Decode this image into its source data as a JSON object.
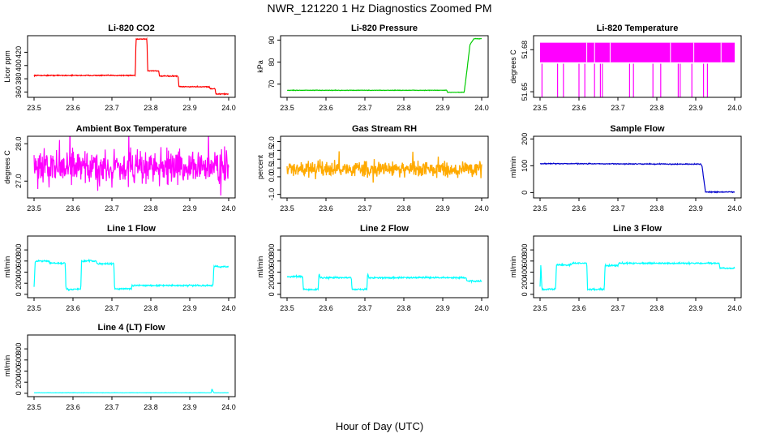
{
  "figure": {
    "title": "NWR_121220  1 Hz Diagnostics Zoomed PM",
    "xlabel": "Hour of Day (UTC)"
  },
  "chart_data": [
    {
      "type": "line",
      "title": "Li-820 CO2",
      "ylabel": "Licor ppm",
      "color": "#ff0000",
      "xlim": [
        23.5,
        24.0
      ],
      "ylim": [
        352,
        445
      ],
      "yticks": [
        {
          "v": 360,
          "label": "360"
        },
        {
          "v": 380,
          "label": "380"
        },
        {
          "v": 400,
          "label": "400"
        },
        {
          "v": 420,
          "label": "420"
        }
      ],
      "xticks": [
        "23.5",
        "23.6",
        "23.7",
        "23.8",
        "23.9",
        "24.0"
      ],
      "noise": 0.6,
      "series": [
        {
          "x": [
            23.5,
            23.76,
            23.762,
            23.79,
            23.792,
            23.82,
            23.822,
            23.87,
            23.872,
            23.95,
            23.952,
            23.965,
            23.967,
            24.0
          ],
          "y": [
            385,
            385,
            440,
            440,
            392,
            392,
            384,
            384,
            368,
            368,
            365,
            365,
            357,
            357
          ]
        }
      ]
    },
    {
      "type": "line",
      "title": "Li-820 Pressure",
      "ylabel": "kPa",
      "color": "#00cc00",
      "xlim": [
        23.5,
        24.0
      ],
      "ylim": [
        64,
        92
      ],
      "yticks": [
        {
          "v": 70,
          "label": "70"
        },
        {
          "v": 80,
          "label": "80"
        },
        {
          "v": 90,
          "label": "90"
        }
      ],
      "xticks": [
        "23.5",
        "23.6",
        "23.7",
        "23.8",
        "23.9",
        "24.0"
      ],
      "noise": 0.1,
      "series": [
        {
          "x": [
            23.5,
            23.91,
            23.912,
            23.955,
            23.962,
            23.97,
            23.98,
            24.0
          ],
          "y": [
            67.2,
            67.2,
            66.3,
            66.3,
            76,
            88,
            90.6,
            90.6
          ]
        }
      ]
    },
    {
      "type": "line",
      "title": "Li-820 Temperature",
      "ylabel": "degrees C",
      "color": "#ff00ff",
      "xlim": [
        23.5,
        24.0
      ],
      "ylim": [
        51.646,
        51.69
      ],
      "yticks": [
        {
          "v": 51.65,
          "label": "51.65"
        },
        {
          "v": 51.68,
          "label": "51.68"
        }
      ],
      "xticks": [
        "23.5",
        "23.6",
        "23.7",
        "23.8",
        "23.9",
        "24.0"
      ],
      "noise": 0,
      "series": [
        {
          "x": [
            23.5,
            24.0
          ],
          "y": [
            51.671,
            51.685
          ]
        }
      ]
    },
    {
      "type": "line",
      "title": "Ambient Box Temperature",
      "ylabel": "degrees C",
      "color": "#ff00ff",
      "xlim": [
        23.5,
        24.0
      ],
      "ylim": [
        26.55,
        28.2
      ],
      "yticks": [
        {
          "v": 27.0,
          "label": "27.0"
        },
        {
          "v": 28.0,
          "label": "28.0"
        }
      ],
      "xticks": [
        "23.5",
        "23.6",
        "23.7",
        "23.8",
        "23.9",
        "24.0"
      ],
      "noise": 0.4,
      "series": [
        {
          "x": [
            23.5,
            24.0
          ],
          "y": [
            27.35,
            27.4
          ]
        }
      ]
    },
    {
      "type": "line",
      "title": "Gas Stream RH",
      "ylabel": "percent",
      "color": "#ffaa00",
      "xlim": [
        23.5,
        24.0
      ],
      "ylim": [
        -1.2,
        2.3
      ],
      "yticks": [
        {
          "v": -1.0,
          "label": "-1.0"
        },
        {
          "v": 0.0,
          "label": "0.0"
        },
        {
          "v": 0.5,
          "label": "0.5"
        },
        {
          "v": 1.0,
          "label": "1.0"
        },
        {
          "v": 1.5,
          "label": "1.5"
        },
        {
          "v": 2.0,
          "label": "2.0"
        }
      ],
      "xticks": [
        "23.5",
        "23.6",
        "23.7",
        "23.8",
        "23.9",
        "24.0"
      ],
      "noise": 0.35,
      "series": [
        {
          "x": [
            23.5,
            24.0
          ],
          "y": [
            0.45,
            0.45
          ]
        }
      ]
    },
    {
      "type": "line",
      "title": "Sample Flow",
      "ylabel": "ml/min",
      "color": "#0000cc",
      "xlim": [
        23.5,
        24.0
      ],
      "ylim": [
        -20,
        210
      ],
      "yticks": [
        {
          "v": 0,
          "label": "0"
        },
        {
          "v": 100,
          "label": "100"
        },
        {
          "v": 200,
          "label": "200"
        }
      ],
      "xticks": [
        "23.5",
        "23.6",
        "23.7",
        "23.8",
        "23.9",
        "24.0"
      ],
      "noise": 1.5,
      "series": [
        {
          "x": [
            23.5,
            23.912,
            23.916,
            23.925,
            24.0
          ],
          "y": [
            108,
            106,
            100,
            2,
            2
          ]
        }
      ]
    },
    {
      "type": "line",
      "title": "Line 1 Flow",
      "ylabel": "ml/min",
      "color": "#00ffff",
      "xlim": [
        23.5,
        24.0
      ],
      "ylim": [
        -60,
        1050
      ],
      "yticks": [
        {
          "v": 0,
          "label": "0"
        },
        {
          "v": 200,
          "label": "200"
        },
        {
          "v": 400,
          "label": "400"
        },
        {
          "v": 600,
          "label": "600"
        },
        {
          "v": 800,
          "label": "800"
        }
      ],
      "xticks": [
        "23.5",
        "23.6",
        "23.7",
        "23.8",
        "23.9",
        "24.0"
      ],
      "noise": 12,
      "series": [
        {
          "x": [
            23.5,
            23.503,
            23.54,
            23.54,
            23.58,
            23.582,
            23.62,
            23.622,
            23.66,
            23.662,
            23.705,
            23.707,
            23.75,
            23.752,
            23.96,
            23.962,
            24.0
          ],
          "y": [
            130,
            600,
            600,
            560,
            560,
            90,
            90,
            600,
            600,
            550,
            550,
            100,
            100,
            160,
            160,
            500,
            500
          ]
        }
      ]
    },
    {
      "type": "line",
      "title": "Line 2 Flow",
      "ylabel": "ml/min",
      "color": "#00ffff",
      "xlim": [
        23.5,
        24.0
      ],
      "ylim": [
        -60,
        1050
      ],
      "yticks": [
        {
          "v": 0,
          "label": "0"
        },
        {
          "v": 200,
          "label": "200"
        },
        {
          "v": 400,
          "label": "400"
        },
        {
          "v": 600,
          "label": "600"
        },
        {
          "v": 800,
          "label": "800"
        }
      ],
      "xticks": [
        "23.5",
        "23.6",
        "23.7",
        "23.8",
        "23.9",
        "24.0"
      ],
      "noise": 12,
      "series": [
        {
          "x": [
            23.5,
            23.54,
            23.542,
            23.58,
            23.582,
            23.585,
            23.665,
            23.667,
            23.705,
            23.707,
            23.71,
            23.96,
            23.962,
            24.0
          ],
          "y": [
            320,
            320,
            90,
            90,
            380,
            300,
            300,
            90,
            90,
            380,
            300,
            300,
            240,
            240
          ]
        }
      ]
    },
    {
      "type": "line",
      "title": "Line 3 Flow",
      "ylabel": "ml/min",
      "color": "#00ffff",
      "xlim": [
        23.5,
        24.0
      ],
      "ylim": [
        -60,
        1050
      ],
      "yticks": [
        {
          "v": 0,
          "label": "0"
        },
        {
          "v": 200,
          "label": "200"
        },
        {
          "v": 400,
          "label": "400"
        },
        {
          "v": 600,
          "label": "600"
        },
        {
          "v": 800,
          "label": "800"
        }
      ],
      "xticks": [
        "23.5",
        "23.6",
        "23.7",
        "23.8",
        "23.9",
        "24.0"
      ],
      "noise": 12,
      "series": [
        {
          "x": [
            23.5,
            23.502,
            23.505,
            23.54,
            23.542,
            23.58,
            23.582,
            23.62,
            23.622,
            23.665,
            23.667,
            23.7,
            23.702,
            23.96,
            23.962,
            24.0
          ],
          "y": [
            130,
            530,
            90,
            90,
            530,
            530,
            560,
            560,
            90,
            90,
            520,
            520,
            560,
            560,
            470,
            470
          ]
        }
      ]
    },
    {
      "type": "line",
      "title": "Line 4 (LT) Flow",
      "ylabel": "ml/min",
      "color": "#00ffff",
      "xlim": [
        23.5,
        24.0
      ],
      "ylim": [
        -60,
        1050
      ],
      "yticks": [
        {
          "v": 0,
          "label": "0"
        },
        {
          "v": 200,
          "label": "200"
        },
        {
          "v": 400,
          "label": "400"
        },
        {
          "v": 600,
          "label": "600"
        },
        {
          "v": 800,
          "label": "800"
        }
      ],
      "xticks": [
        "23.5",
        "23.6",
        "23.7",
        "23.8",
        "23.9",
        "24.0"
      ],
      "noise": 2,
      "series": [
        {
          "x": [
            23.5,
            23.955,
            23.957,
            23.96,
            23.962,
            24.0
          ],
          "y": [
            10,
            10,
            80,
            30,
            10,
            10
          ]
        }
      ]
    }
  ]
}
